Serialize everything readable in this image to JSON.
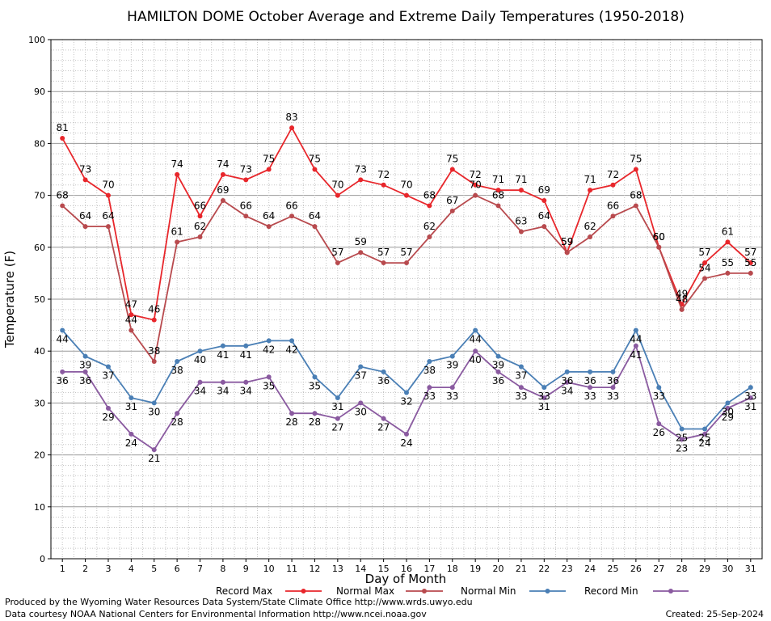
{
  "chart_data": {
    "type": "line",
    "title": "HAMILTON DOME October Average and Extreme Daily Temperatures (1950-2018)",
    "xlabel": "Day of Month",
    "ylabel": "Temperature (F)",
    "ylim": [
      0,
      100
    ],
    "yticks": [
      0,
      10,
      20,
      30,
      40,
      50,
      60,
      70,
      80,
      90,
      100
    ],
    "categories": [
      "1",
      "2",
      "3",
      "4",
      "5",
      "6",
      "7",
      "8",
      "9",
      "10",
      "11",
      "12",
      "13",
      "14",
      "15",
      "16",
      "17",
      "18",
      "19",
      "20",
      "21",
      "22",
      "23",
      "24",
      "25",
      "26",
      "27",
      "28",
      "29",
      "30",
      "31"
    ],
    "grid": true,
    "legend_position": "bottom",
    "series": [
      {
        "name": "Record Max",
        "color": "#e8262b",
        "values": [
          81,
          73,
          70,
          47,
          46,
          74,
          66,
          74,
          73,
          75,
          83,
          75,
          70,
          73,
          72,
          70,
          68,
          75,
          72,
          71,
          71,
          69,
          59,
          71,
          72,
          75,
          60,
          49,
          57,
          61,
          57
        ]
      },
      {
        "name": "Normal Max",
        "color": "#b84a4e",
        "values": [
          68,
          64,
          64,
          44,
          38,
          61,
          62,
          69,
          66,
          64,
          66,
          64,
          57,
          59,
          57,
          57,
          62,
          67,
          70,
          68,
          63,
          64,
          59,
          62,
          66,
          68,
          60,
          48,
          54,
          55,
          55
        ]
      },
      {
        "name": "Normal Min",
        "color": "#4a7fb5",
        "values": [
          44,
          39,
          37,
          31,
          30,
          38,
          40,
          41,
          41,
          42,
          42,
          35,
          31,
          37,
          36,
          32,
          38,
          39,
          44,
          39,
          37,
          33,
          36,
          36,
          36,
          44,
          33,
          25,
          25,
          30,
          33
        ]
      },
      {
        "name": "Record Min",
        "color": "#8a5aa0",
        "values": [
          36,
          36,
          29,
          24,
          21,
          28,
          34,
          34,
          34,
          35,
          28,
          28,
          27,
          30,
          27,
          24,
          33,
          33,
          40,
          36,
          33,
          31,
          34,
          33,
          33,
          41,
          26,
          23,
          24,
          29,
          31
        ]
      }
    ]
  },
  "footer": {
    "line1": "Produced by the Wyoming Water Resources Data System/State Climate Office http://www.wrds.uwyo.edu",
    "line2": "Data courtesy NOAA National Centers for Environmental Information http://www.ncei.noaa.gov",
    "created": "Created:  25-Sep-2024"
  }
}
